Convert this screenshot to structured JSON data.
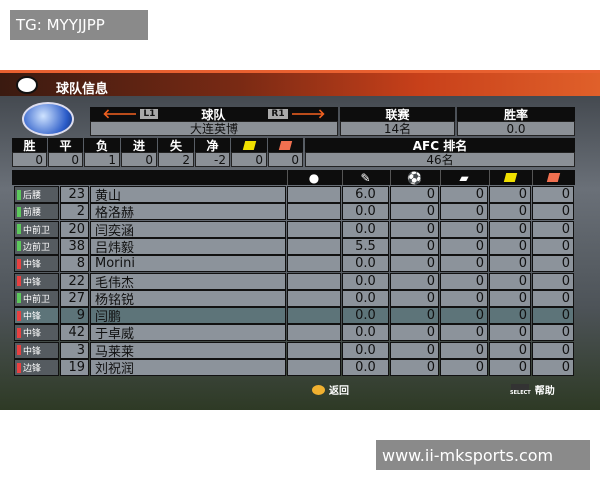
{
  "watermark_top": "TG: MYYJJPP",
  "watermark_bottom": "www.ii-mksports.com",
  "title": "球队信息",
  "team": {
    "header": "球队",
    "prev": "L1",
    "next": "R1",
    "name": "大连英博"
  },
  "league": {
    "header": "联赛",
    "value": "14名"
  },
  "winrate": {
    "header": "胜率",
    "value": "0.0"
  },
  "record": {
    "headers": [
      "胜",
      "平",
      "负",
      "进",
      "失",
      "净"
    ],
    "values": [
      "0",
      "0",
      "1",
      "0",
      "2",
      "-2",
      "0",
      "0"
    ],
    "cards": [
      "yellow-card",
      "red-card"
    ]
  },
  "afc": {
    "header": "AFC 排名",
    "value": "46名"
  },
  "colors": {
    "yellow": "#f0e000",
    "red": "#f07050",
    "pos_green": "#5cc85c",
    "pos_red": "#e84040"
  },
  "stat_icons": [
    "injury-icon",
    "rating-icon",
    "goal-ball-icon",
    "assist-boot-icon",
    "yellow-card-icon",
    "red-card-icon"
  ],
  "players": [
    {
      "pos": "后腰",
      "c": "green",
      "num": "23",
      "name": "黄山",
      "rating": "6.0",
      "g": "0",
      "a": "0",
      "y": "0",
      "r": "0"
    },
    {
      "pos": "前腰",
      "c": "green",
      "num": "2",
      "name": "格洛赫",
      "rating": "0.0",
      "g": "0",
      "a": "0",
      "y": "0",
      "r": "0"
    },
    {
      "pos": "中前卫",
      "c": "green",
      "num": "20",
      "name": "闫奕涵",
      "rating": "0.0",
      "g": "0",
      "a": "0",
      "y": "0",
      "r": "0"
    },
    {
      "pos": "边前卫",
      "c": "green",
      "num": "38",
      "name": "吕炜毅",
      "rating": "5.5",
      "g": "0",
      "a": "0",
      "y": "0",
      "r": "0"
    },
    {
      "pos": "中锋",
      "c": "red",
      "num": "8",
      "name": "Morini",
      "rating": "0.0",
      "g": "0",
      "a": "0",
      "y": "0",
      "r": "0"
    },
    {
      "pos": "中锋",
      "c": "red",
      "num": "22",
      "name": "毛伟杰",
      "rating": "0.0",
      "g": "0",
      "a": "0",
      "y": "0",
      "r": "0"
    },
    {
      "pos": "中前卫",
      "c": "green",
      "num": "27",
      "name": "杨铭锐",
      "rating": "0.0",
      "g": "0",
      "a": "0",
      "y": "0",
      "r": "0"
    },
    {
      "pos": "中锋",
      "c": "red",
      "num": "9",
      "name": "闫鹏",
      "rating": "0.0",
      "g": "0",
      "a": "0",
      "y": "0",
      "r": "0",
      "selected": true
    },
    {
      "pos": "中锋",
      "c": "red",
      "num": "42",
      "name": "于卓威",
      "rating": "0.0",
      "g": "0",
      "a": "0",
      "y": "0",
      "r": "0"
    },
    {
      "pos": "中锋",
      "c": "red",
      "num": "3",
      "name": "马莱莱",
      "rating": "0.0",
      "g": "0",
      "a": "0",
      "y": "0",
      "r": "0"
    },
    {
      "pos": "边锋",
      "c": "red",
      "num": "19",
      "name": "刘祝润",
      "rating": "0.0",
      "g": "0",
      "a": "0",
      "y": "0",
      "r": "0"
    }
  ],
  "footer": {
    "back": "返回",
    "select": "SELECT",
    "help": "帮助"
  }
}
